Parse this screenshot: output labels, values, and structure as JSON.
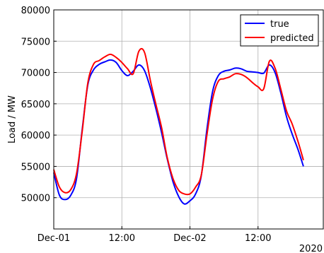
{
  "chart_data": {
    "type": "line",
    "title": "",
    "xlabel": "",
    "ylabel": "Load / MW",
    "x_offset_label": "2020",
    "xlim": [
      "2020-12-01 00:00",
      "2020-12-02 23:30"
    ],
    "ylim": [
      45000,
      80000
    ],
    "x_ticks": [
      {
        "at": "2020-12-01 00:00",
        "label": "Dec-01"
      },
      {
        "at": "2020-12-01 12:00",
        "label": "12:00"
      },
      {
        "at": "2020-12-02 00:00",
        "label": "Dec-02"
      },
      {
        "at": "2020-12-02 12:00",
        "label": "12:00"
      }
    ],
    "y_ticks": [
      50000,
      55000,
      60000,
      65000,
      70000,
      75000,
      80000
    ],
    "grid": true,
    "legend_position": "top-right",
    "series": [
      {
        "name": "true",
        "color": "#0000ff",
        "points": [
          [
            "2020-12-01 00:00",
            54000
          ],
          [
            "2020-12-01 01:00",
            50400
          ],
          [
            "2020-12-01 02:00",
            49700
          ],
          [
            "2020-12-01 03:00",
            50400
          ],
          [
            "2020-12-01 04:00",
            53000
          ],
          [
            "2020-12-01 05:00",
            60800
          ],
          [
            "2020-12-01 06:00",
            68000
          ],
          [
            "2020-12-01 07:00",
            70400
          ],
          [
            "2020-12-01 08:00",
            71300
          ],
          [
            "2020-12-01 09:00",
            71700
          ],
          [
            "2020-12-01 10:00",
            72000
          ],
          [
            "2020-12-01 11:00",
            71600
          ],
          [
            "2020-12-01 12:00",
            70300
          ],
          [
            "2020-12-01 13:00",
            69500
          ],
          [
            "2020-12-01 14:00",
            70200
          ],
          [
            "2020-12-01 15:00",
            71200
          ],
          [
            "2020-12-01 16:00",
            70300
          ],
          [
            "2020-12-01 17:00",
            67600
          ],
          [
            "2020-12-01 18:00",
            64200
          ],
          [
            "2020-12-01 19:00",
            60400
          ],
          [
            "2020-12-01 20:00",
            56200
          ],
          [
            "2020-12-01 21:00",
            52600
          ],
          [
            "2020-12-01 22:00",
            50200
          ],
          [
            "2020-12-01 23:00",
            49000
          ],
          [
            "2020-12-02 00:00",
            49500
          ],
          [
            "2020-12-02 01:00",
            50600
          ],
          [
            "2020-12-02 02:00",
            53500
          ],
          [
            "2020-12-02 03:00",
            61000
          ],
          [
            "2020-12-02 04:00",
            67000
          ],
          [
            "2020-12-02 05:00",
            69500
          ],
          [
            "2020-12-02 06:00",
            70200
          ],
          [
            "2020-12-02 07:00",
            70400
          ],
          [
            "2020-12-02 08:00",
            70700
          ],
          [
            "2020-12-02 09:00",
            70600
          ],
          [
            "2020-12-02 10:00",
            70200
          ],
          [
            "2020-12-02 11:00",
            70100
          ],
          [
            "2020-12-02 12:00",
            70000
          ],
          [
            "2020-12-02 13:00",
            69900
          ],
          [
            "2020-12-02 14:00",
            71200
          ],
          [
            "2020-12-02 15:00",
            70000
          ],
          [
            "2020-12-02 16:00",
            66800
          ],
          [
            "2020-12-02 17:00",
            63000
          ],
          [
            "2020-12-02 18:00",
            60200
          ],
          [
            "2020-12-02 19:00",
            57800
          ],
          [
            "2020-12-02 20:00",
            55000
          ]
        ]
      },
      {
        "name": "predicted",
        "color": "#ff0000",
        "points": [
          [
            "2020-12-01 00:00",
            54500
          ],
          [
            "2020-12-01 01:00",
            51700
          ],
          [
            "2020-12-01 02:00",
            50800
          ],
          [
            "2020-12-01 03:00",
            51300
          ],
          [
            "2020-12-01 04:00",
            53800
          ],
          [
            "2020-12-01 05:00",
            60500
          ],
          [
            "2020-12-01 06:00",
            68300
          ],
          [
            "2020-12-01 07:00",
            71300
          ],
          [
            "2020-12-01 08:00",
            71900
          ],
          [
            "2020-12-01 09:00",
            72500
          ],
          [
            "2020-12-01 10:00",
            72900
          ],
          [
            "2020-12-01 11:00",
            72400
          ],
          [
            "2020-12-01 12:00",
            71600
          ],
          [
            "2020-12-01 13:00",
            70600
          ],
          [
            "2020-12-01 14:00",
            69800
          ],
          [
            "2020-12-01 15:00",
            73400
          ],
          [
            "2020-12-01 16:00",
            73200
          ],
          [
            "2020-12-01 17:00",
            68800
          ],
          [
            "2020-12-01 18:00",
            64900
          ],
          [
            "2020-12-01 19:00",
            61200
          ],
          [
            "2020-12-01 20:00",
            56400
          ],
          [
            "2020-12-01 21:00",
            53100
          ],
          [
            "2020-12-01 22:00",
            51200
          ],
          [
            "2020-12-01 23:00",
            50600
          ],
          [
            "2020-12-02 00:00",
            50600
          ],
          [
            "2020-12-02 01:00",
            51700
          ],
          [
            "2020-12-02 02:00",
            53600
          ],
          [
            "2020-12-02 03:00",
            60100
          ],
          [
            "2020-12-02 04:00",
            65800
          ],
          [
            "2020-12-02 05:00",
            68600
          ],
          [
            "2020-12-02 06:00",
            69000
          ],
          [
            "2020-12-02 07:00",
            69300
          ],
          [
            "2020-12-02 08:00",
            69800
          ],
          [
            "2020-12-02 09:00",
            69700
          ],
          [
            "2020-12-02 10:00",
            69200
          ],
          [
            "2020-12-02 11:00",
            68400
          ],
          [
            "2020-12-02 12:00",
            67700
          ],
          [
            "2020-12-02 13:00",
            67400
          ],
          [
            "2020-12-02 14:00",
            71800
          ],
          [
            "2020-12-02 15:00",
            70700
          ],
          [
            "2020-12-02 16:00",
            67400
          ],
          [
            "2020-12-02 17:00",
            63900
          ],
          [
            "2020-12-02 18:00",
            61800
          ],
          [
            "2020-12-02 19:00",
            59100
          ],
          [
            "2020-12-02 20:00",
            56000
          ]
        ]
      }
    ]
  }
}
